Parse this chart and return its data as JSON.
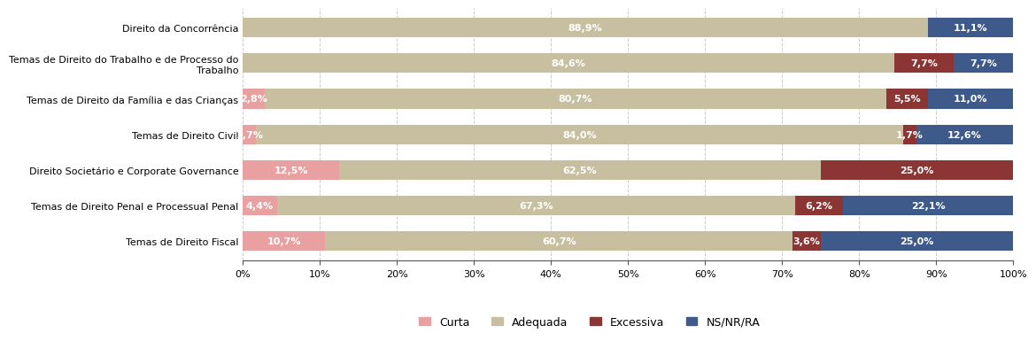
{
  "categories": [
    "Direito da Concorrência",
    "Temas de Direito do Trabalho e de Processo do\nTrabalho",
    "Temas de Direito da Família e das Crianças",
    "Temas de Direito Civil",
    "Direito Societário e Corporate Governance",
    "Temas de Direito Penal e Processual Penal",
    "Temas de Direito Fiscal"
  ],
  "curta": [
    0.0,
    0.0,
    2.8,
    1.7,
    12.5,
    4.4,
    10.7
  ],
  "adequada": [
    88.9,
    84.6,
    80.7,
    84.0,
    62.5,
    67.3,
    60.7
  ],
  "excessiva": [
    0.0,
    7.7,
    5.5,
    1.7,
    25.0,
    6.2,
    3.6
  ],
  "nsnrra": [
    11.1,
    7.7,
    11.0,
    12.6,
    0.0,
    22.1,
    25.0
  ],
  "curta_labels": [
    "",
    "",
    "2,8%",
    "1,7%",
    "12,5%",
    "4,4%",
    "10,7%"
  ],
  "adequada_labels": [
    "88,9%",
    "84,6%",
    "80,7%",
    "84,0%",
    "62,5%",
    "67,3%",
    "60,7%"
  ],
  "excessiva_labels": [
    "",
    "7,7%",
    "5,5%",
    "1,7%",
    "25,0%",
    "6,2%",
    "3,6%"
  ],
  "nsnrra_labels": [
    "11,1%",
    "7,7%",
    "11,0%",
    "12,6%",
    "",
    "22,1%",
    "25,0%"
  ],
  "color_curta": "#e8a0a0",
  "color_adequada": "#c8bfa0",
  "color_excessiva": "#8b3535",
  "color_nsnrra": "#3d5a8a",
  "legend_labels": [
    "Curta",
    "Adequada",
    "Excessiva",
    "NS/NR/RA"
  ],
  "bar_height": 0.55,
  "text_color": "#ffffff",
  "fontsize_bars": 8,
  "fontsize_labels": 8,
  "fontsize_ticks": 8,
  "fontsize_legend": 9,
  "background_color": "#ffffff"
}
